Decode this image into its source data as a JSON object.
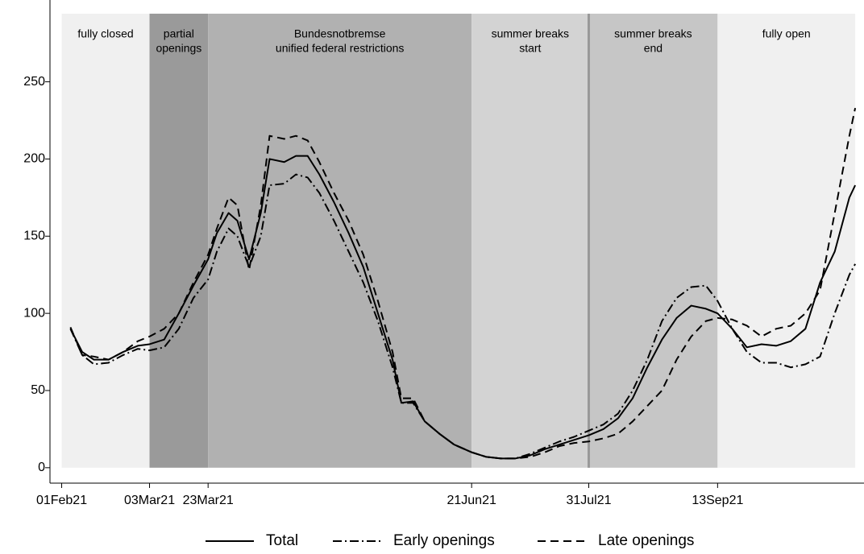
{
  "chart_data": {
    "type": "line",
    "x": [
      "2021-02-04",
      "2021-02-08",
      "2021-02-12",
      "2021-02-17",
      "2021-02-22",
      "2021-02-27",
      "2021-03-03",
      "2021-03-08",
      "2021-03-13",
      "2021-03-18",
      "2021-03-23",
      "2021-03-26",
      "2021-03-30",
      "2021-04-02",
      "2021-04-06",
      "2021-04-10",
      "2021-04-13",
      "2021-04-18",
      "2021-04-22",
      "2021-04-26",
      "2021-04-30",
      "2021-05-05",
      "2021-05-10",
      "2021-05-15",
      "2021-05-20",
      "2021-05-25",
      "2021-05-28",
      "2021-06-01",
      "2021-06-05",
      "2021-06-10",
      "2021-06-15",
      "2021-06-21",
      "2021-06-26",
      "2021-07-01",
      "2021-07-06",
      "2021-07-11",
      "2021-07-16",
      "2021-07-21",
      "2021-07-26",
      "2021-07-31",
      "2021-08-05",
      "2021-08-10",
      "2021-08-15",
      "2021-08-20",
      "2021-08-25",
      "2021-08-30",
      "2021-09-04",
      "2021-09-09",
      "2021-09-13",
      "2021-09-18",
      "2021-09-23",
      "2021-09-28",
      "2021-10-03",
      "2021-10-08",
      "2021-10-13",
      "2021-10-18",
      "2021-10-23",
      "2021-10-28",
      "2021-10-30"
    ],
    "series": [
      {
        "name": "Total",
        "color": "#000000",
        "dash": "solid",
        "values": [
          90,
          75,
          70,
          70,
          75,
          79,
          80,
          83,
          100,
          118,
          135,
          152,
          165,
          160,
          135,
          165,
          200,
          198,
          202,
          202,
          190,
          172,
          152,
          130,
          100,
          70,
          42,
          43,
          30,
          22,
          15,
          10,
          7,
          6,
          6,
          8,
          12,
          15,
          18,
          21,
          25,
          32,
          45,
          65,
          83,
          97,
          105,
          103,
          100,
          90,
          78,
          80,
          79,
          82,
          90,
          120,
          140,
          175,
          183
        ]
      },
      {
        "name": "Early openings",
        "color": "#000000",
        "dash": "dashdot",
        "values": [
          90,
          73,
          67,
          68,
          73,
          77,
          76,
          78,
          90,
          110,
          122,
          140,
          155,
          150,
          130,
          150,
          183,
          184,
          190,
          188,
          178,
          160,
          140,
          120,
          95,
          65,
          42,
          42,
          30,
          22,
          15,
          10,
          7,
          6,
          6,
          9,
          13,
          17,
          20,
          24,
          28,
          35,
          50,
          70,
          95,
          110,
          117,
          118,
          108,
          90,
          75,
          68,
          68,
          65,
          67,
          72,
          100,
          125,
          132
        ]
      },
      {
        "name": "Late openings",
        "color": "#000000",
        "dash": "dash",
        "values": [
          91,
          73,
          72,
          70,
          75,
          82,
          85,
          90,
          100,
          120,
          138,
          155,
          175,
          170,
          128,
          170,
          215,
          213,
          215,
          212,
          198,
          178,
          160,
          138,
          108,
          75,
          45,
          45,
          30,
          22,
          15,
          10,
          7,
          6,
          6,
          7,
          10,
          14,
          16,
          17,
          19,
          22,
          30,
          40,
          50,
          70,
          85,
          95,
          97,
          96,
          92,
          85,
          90,
          92,
          100,
          115,
          165,
          215,
          233
        ]
      }
    ],
    "phases": [
      {
        "label": [
          "fully closed"
        ],
        "start": "2021-02-01",
        "end": "2021-03-03",
        "color": "#f0f0f0"
      },
      {
        "label": [
          "partial",
          "openings"
        ],
        "start": "2021-03-03",
        "end": "2021-03-23",
        "color": "#9a9a9a"
      },
      {
        "label": [
          "Bundesnotbremse",
          "unified federal restrictions"
        ],
        "start": "2021-03-23",
        "end": "2021-06-21",
        "color": "#b1b1b1"
      },
      {
        "label": [
          "summer breaks",
          "start"
        ],
        "start": "2021-06-21",
        "end": "2021-07-31",
        "color": "#d3d3d3"
      },
      {
        "label": [
          "summer breaks",
          "end"
        ],
        "start": "2021-07-31",
        "end": "2021-09-13",
        "color": "#c6c6c6",
        "edge_color": "#999999"
      },
      {
        "label": [
          "fully open"
        ],
        "start": "2021-09-13",
        "end": "2021-10-30",
        "color": "#f0f0f0"
      }
    ],
    "xlim": [
      "2021-01-28",
      "2021-11-02"
    ],
    "xticks": [
      {
        "value": "2021-02-01",
        "label": "01Feb21"
      },
      {
        "value": "2021-03-03",
        "label": "03Mar21"
      },
      {
        "value": "2021-03-23",
        "label": "23Mar21"
      },
      {
        "value": "2021-06-21",
        "label": "21Jun21"
      },
      {
        "value": "2021-07-31",
        "label": "31Jul21"
      },
      {
        "value": "2021-09-13",
        "label": "13Sep21"
      }
    ],
    "ylim": [
      -10,
      303
    ],
    "yticks": [
      0,
      50,
      100,
      150,
      200,
      250
    ],
    "grid": false,
    "legend": "bottom"
  }
}
